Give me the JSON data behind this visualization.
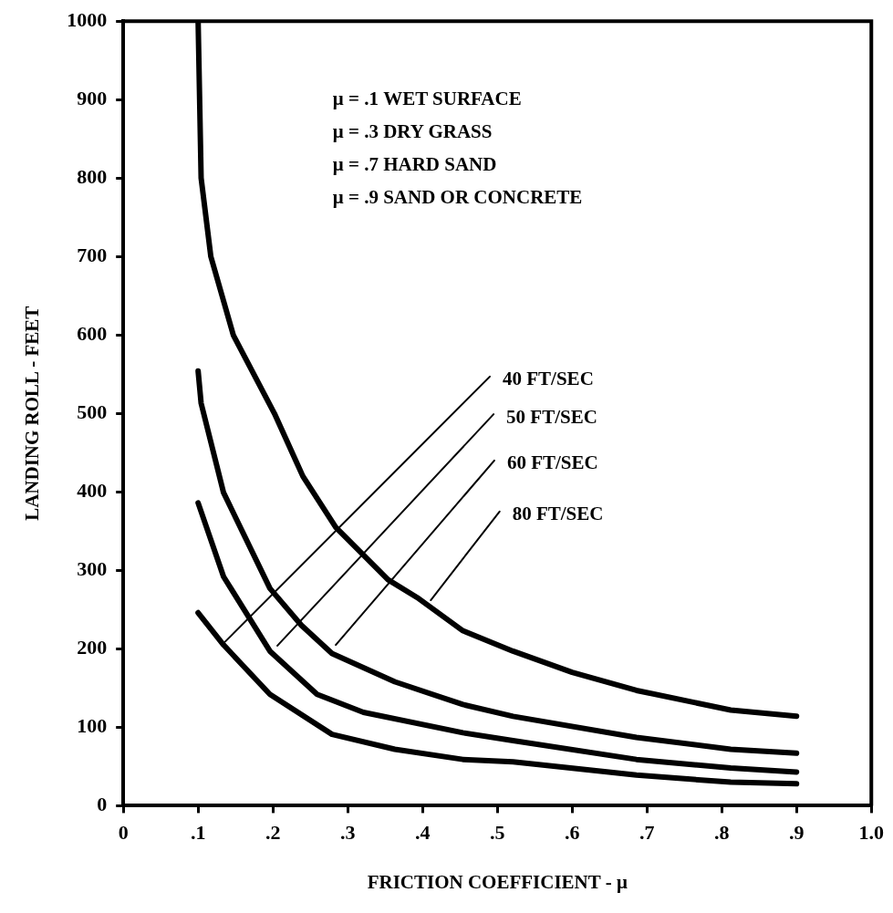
{
  "chart_data": {
    "type": "line",
    "xlabel": "FRICTION COEFFICIENT - μ",
    "ylabel": "LANDING ROLL - FEET",
    "xlim": [
      0,
      1
    ],
    "ylim": [
      0,
      1000
    ],
    "xticks": [
      0,
      {
        "value": 0.1,
        "label": ".1"
      },
      {
        "value": 0.2,
        "label": ".2"
      },
      {
        "value": 0.3,
        "label": ".3"
      },
      {
        "value": 0.4,
        "label": ".4"
      },
      {
        "value": 0.5,
        "label": ".5"
      },
      {
        "value": 0.6,
        "label": ".6"
      },
      {
        "value": 0.7,
        "label": ".7"
      },
      {
        "value": 0.8,
        "label": ".8"
      },
      {
        "value": 0.9,
        "label": ".9"
      },
      {
        "value": 1,
        "label": "1.0"
      }
    ],
    "yticks": [
      0,
      100,
      200,
      300,
      400,
      500,
      600,
      700,
      800,
      900,
      1000
    ],
    "grid": false,
    "legend": false,
    "marker": "none",
    "line_style": "solid",
    "series": [
      {
        "color": "#000000",
        "x": [
          0.1,
          0.102,
          0.104,
          0.117,
          0.147,
          0.202,
          0.24,
          0.284,
          0.354,
          0.395,
          0.454,
          0.521,
          0.6,
          0.686,
          0.812,
          0.9
        ],
        "values": [
          1000,
          900,
          800,
          700,
          600,
          500,
          420,
          355,
          288,
          264,
          223,
          197,
          170,
          147,
          122,
          114
        ]
      },
      {
        "color": "#000000",
        "x": [
          0.1,
          0.104,
          0.134,
          0.196,
          0.238,
          0.279,
          0.363,
          0.454,
          0.521,
          0.686,
          0.812,
          0.9
        ],
        "values": [
          554,
          513,
          399,
          277,
          230,
          194,
          158,
          129,
          114,
          87,
          72,
          67
        ]
      },
      {
        "color": "#000000",
        "x": [
          0.1,
          0.134,
          0.196,
          0.259,
          0.321,
          0.454,
          0.521,
          0.686,
          0.812,
          0.9
        ],
        "values": [
          386,
          292,
          197,
          142,
          119,
          93,
          83,
          59,
          48,
          43
        ]
      },
      {
        "color": "#000000",
        "x": [
          0.1,
          0.134,
          0.196,
          0.279,
          0.363,
          0.454,
          0.521,
          0.686,
          0.812,
          0.9
        ],
        "values": [
          246,
          205,
          142,
          91,
          72,
          59,
          56,
          39,
          30,
          28
        ]
      },
      {
        "color": "#000000",
        "x": [
          0.136,
          0.49
        ],
        "values": [
          209,
          547
        ]
      },
      {
        "color": "#000000",
        "x": [
          0.206,
          0.495
        ],
        "values": [
          204,
          499
        ]
      },
      {
        "color": "#000000",
        "x": [
          0.284,
          0.496
        ],
        "values": [
          205,
          440
        ]
      },
      {
        "color": "#000000",
        "x": [
          0.411,
          0.503
        ],
        "values": [
          262,
          375
        ]
      }
    ],
    "annotations": [
      "μ = .1 WET SURFACE",
      "μ = .3 DRY GRASS",
      "μ = .7 HARD SAND",
      "μ = .9 SAND OR CONCRETE",
      {
        "text": "40 FT/SEC",
        "x": 0.49,
        "y": 547
      },
      {
        "text": "50 FT/SEC",
        "x": 0.495,
        "y": 499
      },
      {
        "text": "60 FT/SEC",
        "x": 0.496,
        "y": 440
      },
      {
        "text": "80 FT/SEC",
        "x": 0.503,
        "y": 375
      }
    ]
  }
}
